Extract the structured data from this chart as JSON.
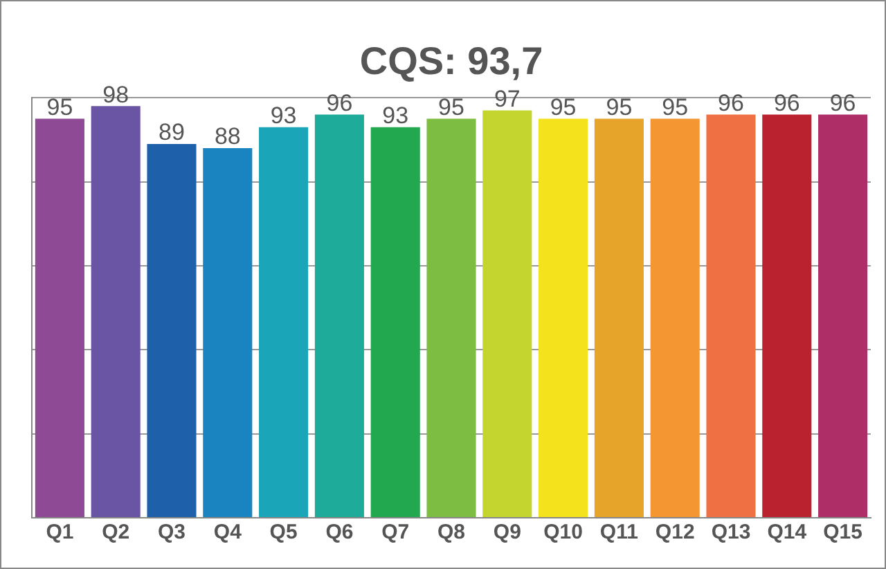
{
  "chart_data": {
    "type": "bar",
    "title": "CQS: 93,7",
    "categories": [
      "Q1",
      "Q2",
      "Q3",
      "Q4",
      "Q5",
      "Q6",
      "Q7",
      "Q8",
      "Q9",
      "Q10",
      "Q11",
      "Q12",
      "Q13",
      "Q14",
      "Q15"
    ],
    "values": [
      95,
      98,
      89,
      88,
      93,
      96,
      93,
      95,
      97,
      95,
      95,
      95,
      96,
      96,
      96
    ],
    "colors": [
      "#8e4a94",
      "#6a55a4",
      "#1f60aa",
      "#1a84c0",
      "#1aa6b8",
      "#1fab99",
      "#22a84e",
      "#7dbe42",
      "#c4d52f",
      "#f3e21c",
      "#e6a42a",
      "#f49631",
      "#ee7043",
      "#bb2230",
      "#ae2f68"
    ],
    "ylim": [
      0,
      100
    ],
    "yticks": [
      {
        "value": 0,
        "label": null
      },
      {
        "value": 20,
        "label": null
      },
      {
        "value": 40,
        "label": null
      },
      {
        "value": 60,
        "label": null
      },
      {
        "value": 80,
        "label": null
      },
      {
        "value": 100,
        "label": null
      }
    ],
    "grid": "y",
    "tick_labels": "x",
    "data_labels": true
  }
}
